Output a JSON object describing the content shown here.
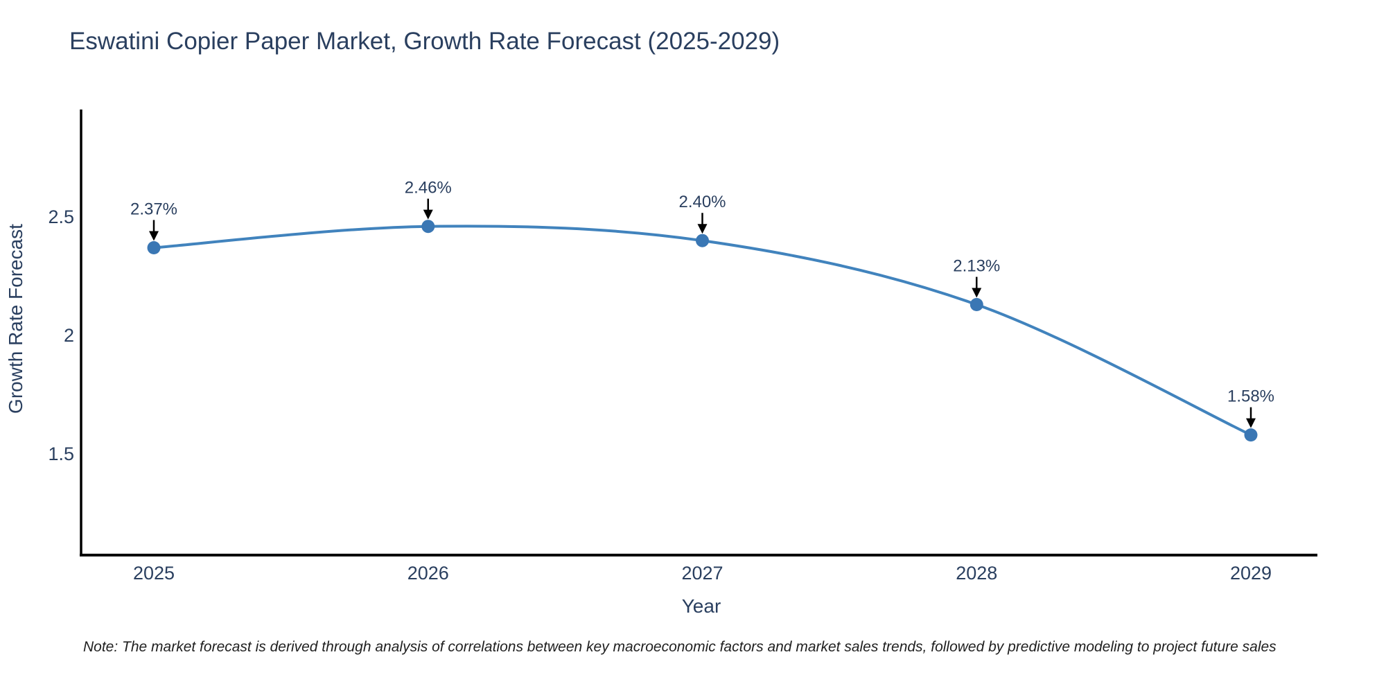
{
  "figure": {
    "note": "Note: The market forecast is derived through analysis of correlations between key macroeconomic factors and market sales trends, followed by predictive modeling to project future sales"
  },
  "chart_data": {
    "type": "line",
    "title": "Eswatini Copier Paper Market, Growth Rate Forecast (2025-2029)",
    "x": [
      "2025",
      "2026",
      "2027",
      "2028",
      "2029"
    ],
    "series": [
      {
        "name": "Growth Rate Forecast",
        "values": [
          2.37,
          2.46,
          2.4,
          2.13,
          1.58
        ],
        "point_labels": [
          "2.37%",
          "2.46%",
          "2.40%",
          "2.13%",
          "1.58%"
        ]
      }
    ],
    "xlabel": "Year",
    "ylabel": "Growth Rate Forecast",
    "yticks": [
      "1.5",
      "2",
      "2.5"
    ],
    "ylim": [
      1.08,
      2.95
    ],
    "grid": false,
    "legend_position": "none",
    "line_shape": "spline",
    "annotation_style": "value label with downward arrow to each point",
    "colors": {
      "line": "#4183bd",
      "marker": "#3a77b4",
      "axis": "#000000",
      "text": "#2a3f5f",
      "annotation_arrow": "#000000",
      "background": "#ffffff"
    }
  }
}
